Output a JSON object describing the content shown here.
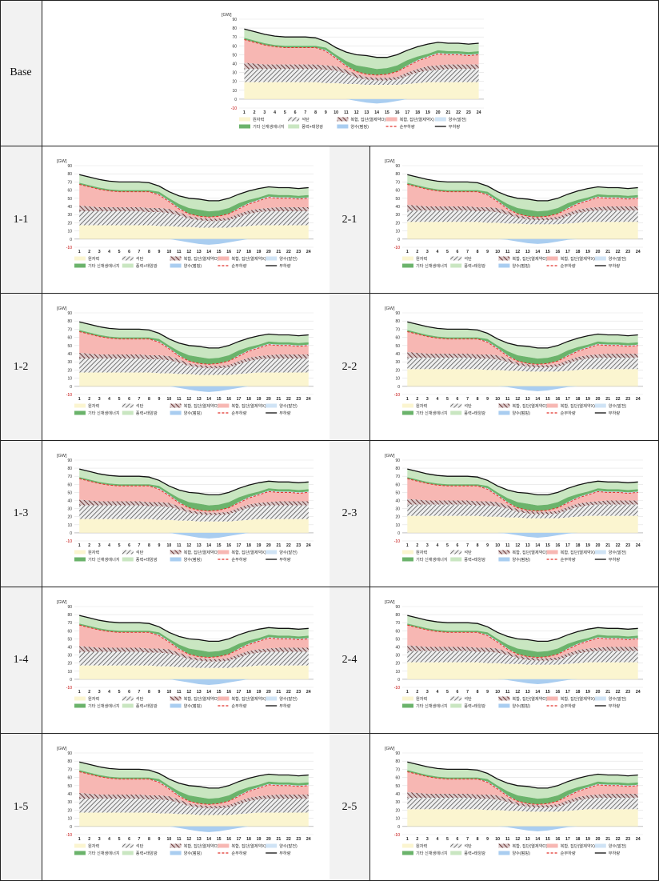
{
  "rows": [
    {
      "left_label": "Base",
      "left_chart": "base"
    },
    {
      "left_label": "1-1",
      "left_chart": "s1",
      "right_label": "2-1",
      "right_chart": "s2"
    },
    {
      "left_label": "1-2",
      "left_chart": "s1",
      "right_label": "2-2",
      "right_chart": "s2"
    },
    {
      "left_label": "1-3",
      "left_chart": "s1",
      "right_label": "2-3",
      "right_chart": "s2"
    },
    {
      "left_label": "1-4",
      "left_chart": "s1",
      "right_label": "2-4",
      "right_chart": "s2"
    },
    {
      "left_label": "1-5",
      "left_chart": "s1",
      "right_label": "2-5",
      "right_chart": "s2"
    }
  ],
  "chart_data": {
    "type": "area",
    "unit": "[GW]",
    "ylim": [
      -10,
      90
    ],
    "yticks": [
      -10,
      0,
      10,
      20,
      30,
      40,
      50,
      60,
      70,
      80,
      90
    ],
    "x": [
      1,
      2,
      3,
      4,
      5,
      6,
      7,
      8,
      9,
      10,
      11,
      12,
      13,
      14,
      15,
      16,
      17,
      18,
      19,
      20,
      21,
      22,
      23,
      24
    ],
    "legend": [
      {
        "name": "원자력",
        "color": "#fbf5d0",
        "kind": "area"
      },
      {
        "name": "석탄",
        "color": "#9a9a9a",
        "kind": "hatch"
      },
      {
        "name": "복합, 집단(열제약O)",
        "color": "#b52a2a",
        "kind": "hatch"
      },
      {
        "name": "복합, 집단(열제약X)",
        "color": "#f7b7b3",
        "kind": "area"
      },
      {
        "name": "양수(발전)",
        "color": "#cfe3f5",
        "kind": "area"
      },
      {
        "name": "기타 신재생에너지",
        "color": "#6bb36b",
        "kind": "area"
      },
      {
        "name": "풍력+태양광",
        "color": "#c9e6c1",
        "kind": "area"
      },
      {
        "name": "양수(펌핑)",
        "color": "#a9cdf0",
        "kind": "area"
      },
      {
        "name": "순부하량",
        "color": "#e0302a",
        "kind": "dash"
      },
      {
        "name": "부하량",
        "color": "#111111",
        "kind": "line"
      }
    ],
    "load": [
      79,
      76,
      73,
      71,
      70,
      70,
      70,
      69,
      65,
      58,
      53,
      50,
      49,
      47,
      47,
      50,
      55,
      59,
      62,
      64,
      63,
      63,
      62,
      63
    ],
    "net_load": [
      67,
      64,
      61,
      59,
      58,
      58,
      58,
      58,
      54,
      46,
      37,
      31,
      28,
      27,
      28,
      31,
      37,
      43,
      47,
      51,
      50,
      50,
      49,
      50
    ],
    "other_renewables_top": [
      69,
      66,
      63,
      61,
      60,
      60,
      60,
      60,
      58,
      50,
      43,
      38,
      36,
      34,
      35,
      38,
      44,
      48,
      51,
      55,
      54,
      54,
      53,
      54
    ],
    "pump_gen_top": [
      67,
      64,
      61,
      59,
      58,
      58,
      58,
      58,
      55,
      47,
      38,
      31,
      28,
      27,
      28,
      31,
      38,
      44,
      48,
      52,
      51,
      51,
      50,
      51
    ],
    "base": {
      "nuclear": [
        19,
        19,
        19,
        19,
        19,
        19,
        19,
        19,
        18,
        18,
        17,
        17,
        16,
        16,
        16,
        16,
        17,
        18,
        19,
        19,
        19,
        19,
        19,
        19
      ],
      "coal_top": [
        34,
        34,
        34,
        34,
        34,
        34,
        34,
        34,
        33,
        32,
        29,
        24,
        22,
        21,
        21,
        22,
        26,
        30,
        32,
        33,
        34,
        34,
        34,
        34
      ],
      "chp_top": [
        41,
        40,
        39,
        39,
        39,
        39,
        39,
        39,
        38,
        37,
        33,
        28,
        25,
        24,
        24,
        25,
        30,
        34,
        37,
        38,
        39,
        39,
        39,
        39
      ],
      "pump_load": [
        0,
        0,
        0,
        0,
        0,
        0,
        0,
        0,
        0,
        0,
        0,
        -2,
        -4,
        -5,
        -4,
        -2,
        0,
        0,
        0,
        0,
        0,
        0,
        0,
        0
      ]
    },
    "s1": {
      "nuclear": [
        17,
        17,
        17,
        17,
        17,
        17,
        17,
        17,
        16,
        16,
        15,
        15,
        14,
        14,
        14,
        14,
        15,
        16,
        17,
        17,
        17,
        17,
        17,
        17
      ],
      "coal_top": [
        34,
        34,
        34,
        34,
        34,
        34,
        34,
        33,
        33,
        32,
        29,
        25,
        23,
        22,
        22,
        23,
        27,
        31,
        33,
        34,
        34,
        34,
        34,
        34
      ],
      "chp_top": [
        41,
        40,
        39,
        39,
        39,
        39,
        39,
        38,
        38,
        37,
        33,
        28,
        26,
        25,
        25,
        26,
        31,
        35,
        37,
        38,
        39,
        39,
        39,
        39
      ],
      "pump_load": [
        0,
        0,
        0,
        0,
        0,
        0,
        0,
        0,
        0,
        0,
        -2,
        -4,
        -6,
        -7,
        -6,
        -4,
        -2,
        0,
        0,
        0,
        0,
        0,
        0,
        0
      ]
    },
    "s2": {
      "nuclear": [
        21,
        21,
        21,
        21,
        21,
        21,
        21,
        21,
        20,
        20,
        19,
        19,
        18,
        18,
        18,
        18,
        19,
        20,
        21,
        21,
        21,
        21,
        21,
        21
      ],
      "coal_top": [
        35,
        35,
        35,
        35,
        35,
        35,
        35,
        34,
        34,
        33,
        30,
        26,
        24,
        23,
        23,
        24,
        28,
        32,
        34,
        35,
        35,
        35,
        35,
        35
      ],
      "chp_top": [
        42,
        41,
        40,
        40,
        40,
        40,
        40,
        39,
        39,
        38,
        34,
        29,
        27,
        26,
        26,
        27,
        32,
        36,
        38,
        39,
        40,
        40,
        40,
        40
      ],
      "pump_load": [
        0,
        0,
        0,
        0,
        0,
        0,
        0,
        0,
        0,
        0,
        -1,
        -3,
        -5,
        -6,
        -5,
        -3,
        -1,
        0,
        0,
        0,
        0,
        0,
        0,
        0
      ]
    }
  }
}
